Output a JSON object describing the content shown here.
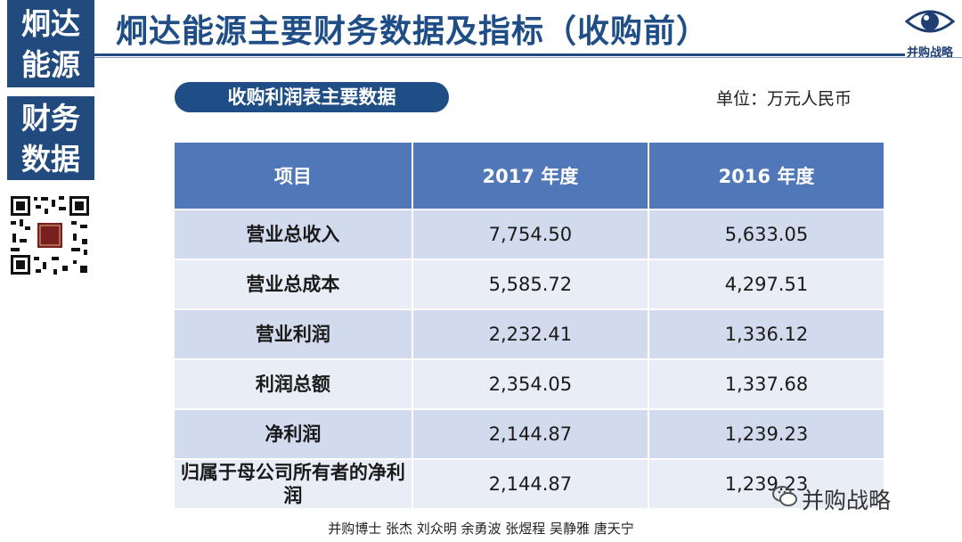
{
  "nav": {
    "block1": [
      "炯达",
      "能源"
    ],
    "block2": [
      "财务",
      "数据"
    ]
  },
  "title": "炯达能源主要财务数据及指标（收购前）",
  "logo": {
    "icon": "eye-icon",
    "text": "并购战略"
  },
  "section_pill": "收购利润表主要数据",
  "unit": "单位：万元人民币",
  "table": {
    "headers": [
      "项目",
      "2017 年度",
      "2016 年度"
    ],
    "rows": [
      [
        "营业总收入",
        "7,754.50",
        "5,633.05"
      ],
      [
        "营业总成本",
        "5,585.72",
        "4,297.51"
      ],
      [
        "营业利润",
        "2,232.41",
        "1,336.12"
      ],
      [
        "利润总额",
        "2,354.05",
        "1,337.68"
      ],
      [
        "净利润",
        "2,144.87",
        "1,239.23"
      ],
      [
        "归属于母公司所有者的净利润",
        "2,144.87",
        "1,239.23"
      ]
    ]
  },
  "watermark": "并购战略",
  "footer": "并购博士 张杰 刘众明 余勇波 张煜程 吴静雅 唐天宁",
  "colors": {
    "navy": "#214a7f",
    "header_blue": "#5077b8",
    "row": "#d2dbed"
  }
}
